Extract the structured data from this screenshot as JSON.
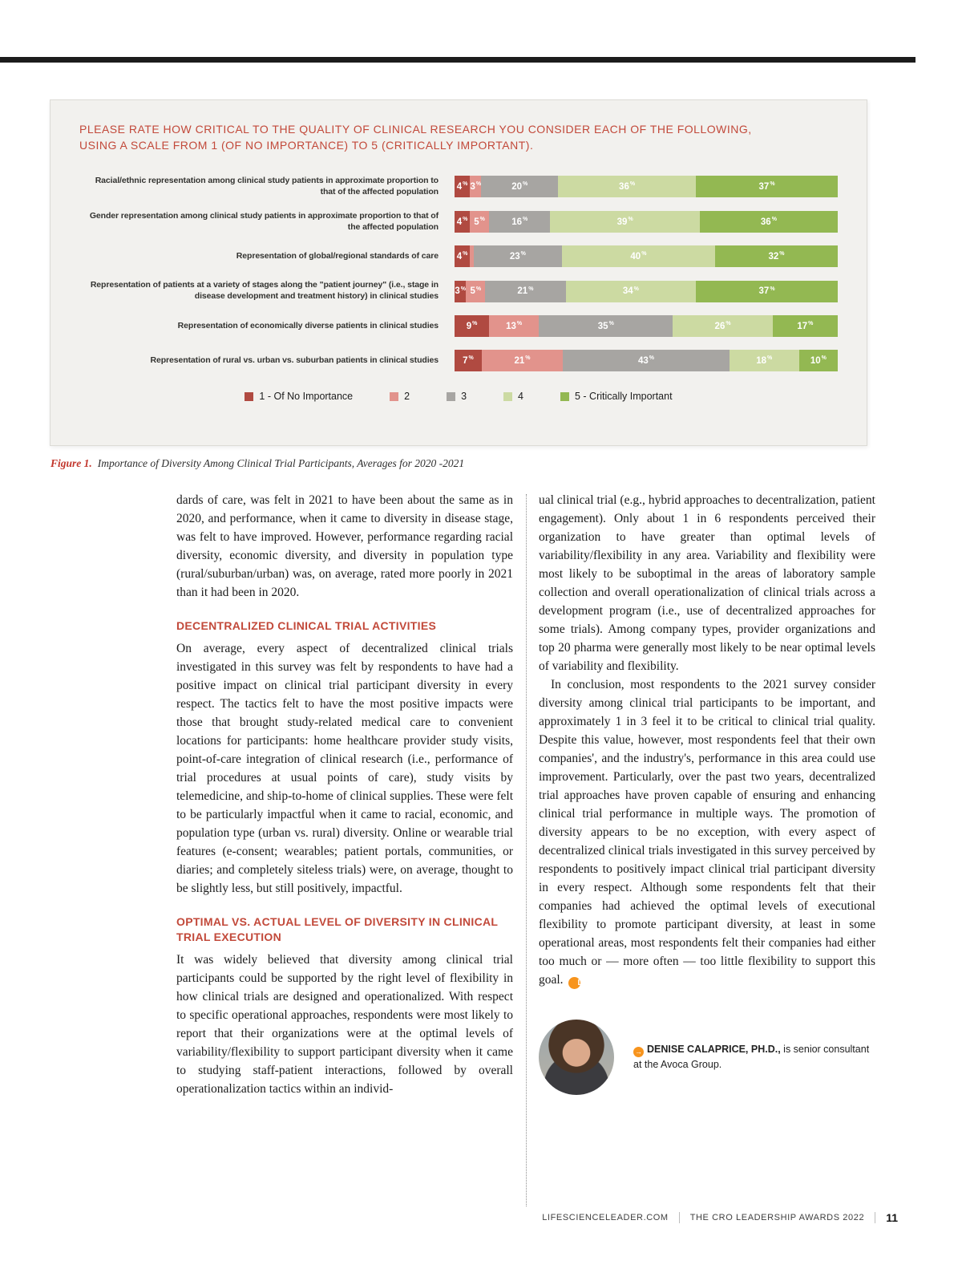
{
  "colors": {
    "accent_red": "#c2493a",
    "accent_orange": "#f7941d",
    "legend_1": "#b04a41",
    "legend_2": "#e2938c",
    "legend_3": "#a7a5a2",
    "legend_4": "#ccdaa2",
    "legend_5": "#93b852",
    "figure_box_background": "#f2f1ee"
  },
  "figure": {
    "title_line1": "PLEASE RATE HOW CRITICAL TO THE QUALITY OF CLINICAL RESEARCH YOU CONSIDER EACH OF THE FOLLOWING,",
    "title_line2": "USING A SCALE FROM 1 (OF NO IMPORTANCE) TO 5 (CRITICALLY IMPORTANT).",
    "caption_label": "Figure 1.",
    "caption": "Importance of Diversity Among Clinical Trial Participants, Averages for 2020 -2021"
  },
  "chart_data": {
    "type": "bar",
    "orientation": "horizontal",
    "stacked": true,
    "unit": "%",
    "xlim": [
      0,
      100
    ],
    "grid": false,
    "legend_position": "bottom",
    "value_labels": "inside segments; labels shown only for segments of 2% or more",
    "categories": [
      "Racial/ethnic representation among clinical study patients in approximate proportion to that of the affected population",
      "Gender representation among clinical study patients in approximate proportion to that of the affected population",
      "Representation of global/regional standards of care",
      "Representation of patients at a variety of stages along the \"patient journey\" (i.e., stage in disease development and treatment history) in clinical studies",
      "Representation of economically diverse patients in clinical studies",
      "Representation of rural vs. urban vs. suburban patients in clinical studies"
    ],
    "series": [
      {
        "name": "1 - Of No Importance",
        "color": "#b04a41",
        "values": [
          4,
          4,
          4,
          3,
          9,
          7
        ]
      },
      {
        "name": "2",
        "color": "#e2938c",
        "values": [
          3,
          5,
          1,
          5,
          13,
          21
        ]
      },
      {
        "name": "3",
        "color": "#a7a5a2",
        "values": [
          20,
          16,
          23,
          21,
          35,
          43
        ]
      },
      {
        "name": "4",
        "color": "#ccdaa2",
        "values": [
          36,
          39,
          40,
          34,
          26,
          18
        ]
      },
      {
        "name": "5 - Critically Important",
        "color": "#93b852",
        "values": [
          37,
          36,
          32,
          37,
          17,
          10
        ]
      }
    ]
  },
  "article": {
    "col1": {
      "p1": "dards of care, was felt in 2021 to have been about the same as in 2020, and performance, when it came to diversity in disease stage, was felt to have improved. However, performance regarding racial diversity, economic diversity, and diversity in population type (rural/suburban/urban) was, on average, rated more poorly in 2021 than it had been in 2020.",
      "heading1": "DECENTRALIZED CLINICAL TRIAL ACTIVITIES",
      "p2": "On average, every aspect of decentralized clinical trials investigated in this survey was felt by respondents to have had a positive impact on clinical trial participant diversity in every respect. The tactics felt to have the most positive impacts were those that brought study-related medical care to convenient locations for participants: home healthcare provider study visits, point-of-care integration of clinical research (i.e., performance of trial procedures at usual points of care), study visits by telemedicine, and ship-to-home of clinical supplies.  These were felt to be particularly impactful when it came to racial, economic, and population type (urban vs. rural) diversity. Online or wearable trial features (e-consent; wearables; patient portals, communities, or diaries; and completely siteless trials) were, on average, thought to be slightly less, but still positively, impactful.",
      "heading2": "OPTIMAL VS. ACTUAL LEVEL OF DIVERSITY IN CLINICAL TRIAL EXECUTION",
      "p3": "It was widely believed that diversity among clinical trial participants could be supported by the right level of flexibility in how clinical trials are designed and operationalized. With respect to specific operational approaches, respondents were most likely to report that their organizations were at the optimal levels of variability/flexibility to support participant diversity when it came to studying staff-patient interactions, followed by overall operationalization tactics within an individ-"
    },
    "col2": {
      "p1": "ual clinical trial (e.g., hybrid approaches to decentralization, patient engagement). Only about 1 in 6 respondents perceived their organization to have greater than optimal levels of variability/flexibility in any area. Variability and flexibility were most likely to be suboptimal in the areas of laboratory sample collection and overall operationalization of clinical trials across a development program (i.e., use of decentralized approaches for some trials). Among company types, provider organizations and top 20 pharma were generally most likely to be near optimal levels of variability and flexibility.",
      "p2": "In conclusion, most respondents to the 2021 survey consider diversity among clinical trial participants to be important, and approximately 1 in 3 feel it to be critical to clinical trial quality.  Despite this value, however, most respondents feel that their own companies', and the industry's, performance in this area could use improvement. Particularly, over the past two years, decentralized trial approaches have proven capable of ensuring and enhancing clinical trial performance in multiple ways.  The promotion of diversity appears to be no exception, with every aspect of decentralized clinical trials investigated in this survey perceived by respondents to positively impact clinical trial participant diversity in every respect. Although some respondents felt that their companies had achieved the optimal levels of executional flexibility to promote participant diversity, at least in some operational areas, most respondents felt their companies had either too much or — more often — too little flexibility to support this goal.",
      "end_marker": "L"
    }
  },
  "bio": {
    "arrow": "→",
    "name": "DENISE CALAPRICE, PH.D.,",
    "rest": " is senior consultant at the Avoca Group."
  },
  "footer": {
    "site": "LIFESCIENCELEADER.COM",
    "publication": "THE CRO LEADERSHIP AWARDS 2022",
    "page": "11"
  }
}
